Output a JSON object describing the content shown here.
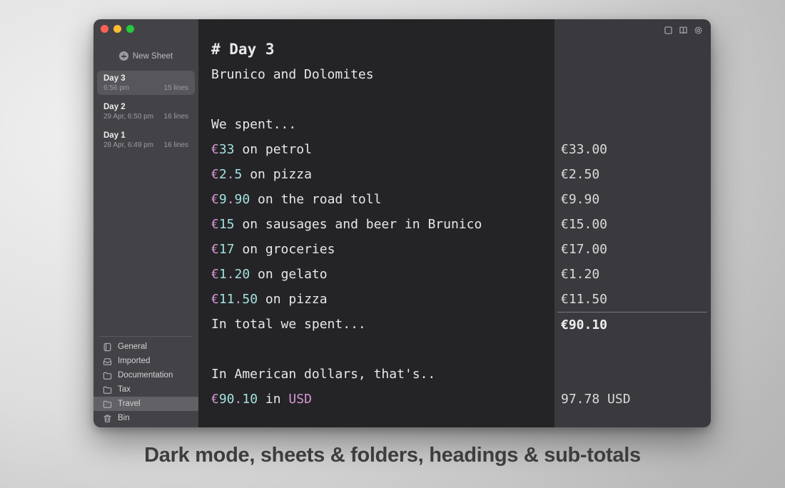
{
  "window": {
    "controls": [
      {
        "name": "close-button",
        "color": "#ff5f57"
      },
      {
        "name": "minimize-button",
        "color": "#febc2e"
      },
      {
        "name": "zoom-button",
        "color": "#28c840"
      }
    ],
    "toolbar_icons": [
      "new-sheet-panel-icon",
      "sidebar-toggle-icon",
      "settings-gear-icon"
    ]
  },
  "sidebar": {
    "new_sheet_label": "New Sheet",
    "sheets": [
      {
        "title": "Day 3",
        "subtitle": "6:56 pm",
        "lines": "15 lines",
        "selected": true
      },
      {
        "title": "Day 2",
        "subtitle": "29 Apr, 6:50 pm",
        "lines": "16 lines",
        "selected": false
      },
      {
        "title": "Day 1",
        "subtitle": "28 Apr, 6:49 pm",
        "lines": "16 lines",
        "selected": false
      }
    ],
    "folders": [
      {
        "label": "General",
        "icon": "notebook-icon",
        "selected": false
      },
      {
        "label": "Imported",
        "icon": "inbox-icon",
        "selected": false
      },
      {
        "label": "Documentation",
        "icon": "folder-icon",
        "selected": false
      },
      {
        "label": "Tax",
        "icon": "folder-icon",
        "selected": false
      },
      {
        "label": "Travel",
        "icon": "folder-icon",
        "selected": true
      },
      {
        "label": "Bin",
        "icon": "trash-icon",
        "selected": false
      }
    ]
  },
  "editor": {
    "lines": [
      {
        "type": "h1",
        "segments": [
          {
            "t": "# Day 3"
          }
        ]
      },
      {
        "segments": [
          {
            "t": "Brunico and Dolomites"
          }
        ]
      },
      {
        "type": "blank"
      },
      {
        "segments": [
          {
            "t": "We spent..."
          }
        ]
      },
      {
        "segments": [
          {
            "t": "€",
            "c": "p"
          },
          {
            "t": "33",
            "c": "c"
          },
          {
            "t": " on petrol"
          }
        ],
        "result": "€33.00"
      },
      {
        "segments": [
          {
            "t": "€",
            "c": "p"
          },
          {
            "t": "2",
            "c": "c"
          },
          {
            "t": ".",
            "c": "p"
          },
          {
            "t": "5",
            "c": "c"
          },
          {
            "t": " on pizza"
          }
        ],
        "result": "€2.50"
      },
      {
        "segments": [
          {
            "t": "€",
            "c": "p"
          },
          {
            "t": "9",
            "c": "c"
          },
          {
            "t": ".",
            "c": "p"
          },
          {
            "t": "90",
            "c": "c"
          },
          {
            "t": " on the road toll"
          }
        ],
        "result": "€9.90"
      },
      {
        "segments": [
          {
            "t": "€",
            "c": "p"
          },
          {
            "t": "15",
            "c": "c"
          },
          {
            "t": " on sausages and beer in Brunico"
          }
        ],
        "result": "€15.00"
      },
      {
        "segments": [
          {
            "t": "€",
            "c": "p"
          },
          {
            "t": "17",
            "c": "c"
          },
          {
            "t": " on groceries"
          }
        ],
        "result": "€17.00"
      },
      {
        "segments": [
          {
            "t": "€",
            "c": "p"
          },
          {
            "t": "1",
            "c": "c"
          },
          {
            "t": ".",
            "c": "p"
          },
          {
            "t": "20",
            "c": "c"
          },
          {
            "t": " on gelato"
          }
        ],
        "result": "€1.20"
      },
      {
        "segments": [
          {
            "t": "€",
            "c": "p"
          },
          {
            "t": "11",
            "c": "c"
          },
          {
            "t": ".",
            "c": "p"
          },
          {
            "t": "50",
            "c": "c"
          },
          {
            "t": " on pizza"
          }
        ],
        "result": "€11.50"
      },
      {
        "segments": [
          {
            "t": "In total we spent..."
          }
        ],
        "result": "€90.10",
        "result_total": true,
        "divider_above_result": true
      },
      {
        "type": "blank"
      },
      {
        "segments": [
          {
            "t": "In American dollars, that's.."
          }
        ]
      },
      {
        "segments": [
          {
            "t": "€",
            "c": "p"
          },
          {
            "t": "90",
            "c": "c"
          },
          {
            "t": ".",
            "c": "p"
          },
          {
            "t": "10",
            "c": "c"
          },
          {
            "t": " in "
          },
          {
            "t": "USD",
            "c": "p"
          }
        ],
        "result": "97.78 USD"
      }
    ]
  },
  "colors": {
    "euro_symbol_and_units": "#d597d6",
    "numbers": "#a3e1e1",
    "editor_background": "#242426",
    "results_background": "#3a3a3e",
    "sidebar_background": "#434347"
  },
  "caption": "Dark mode, sheets & folders, headings & sub-totals"
}
